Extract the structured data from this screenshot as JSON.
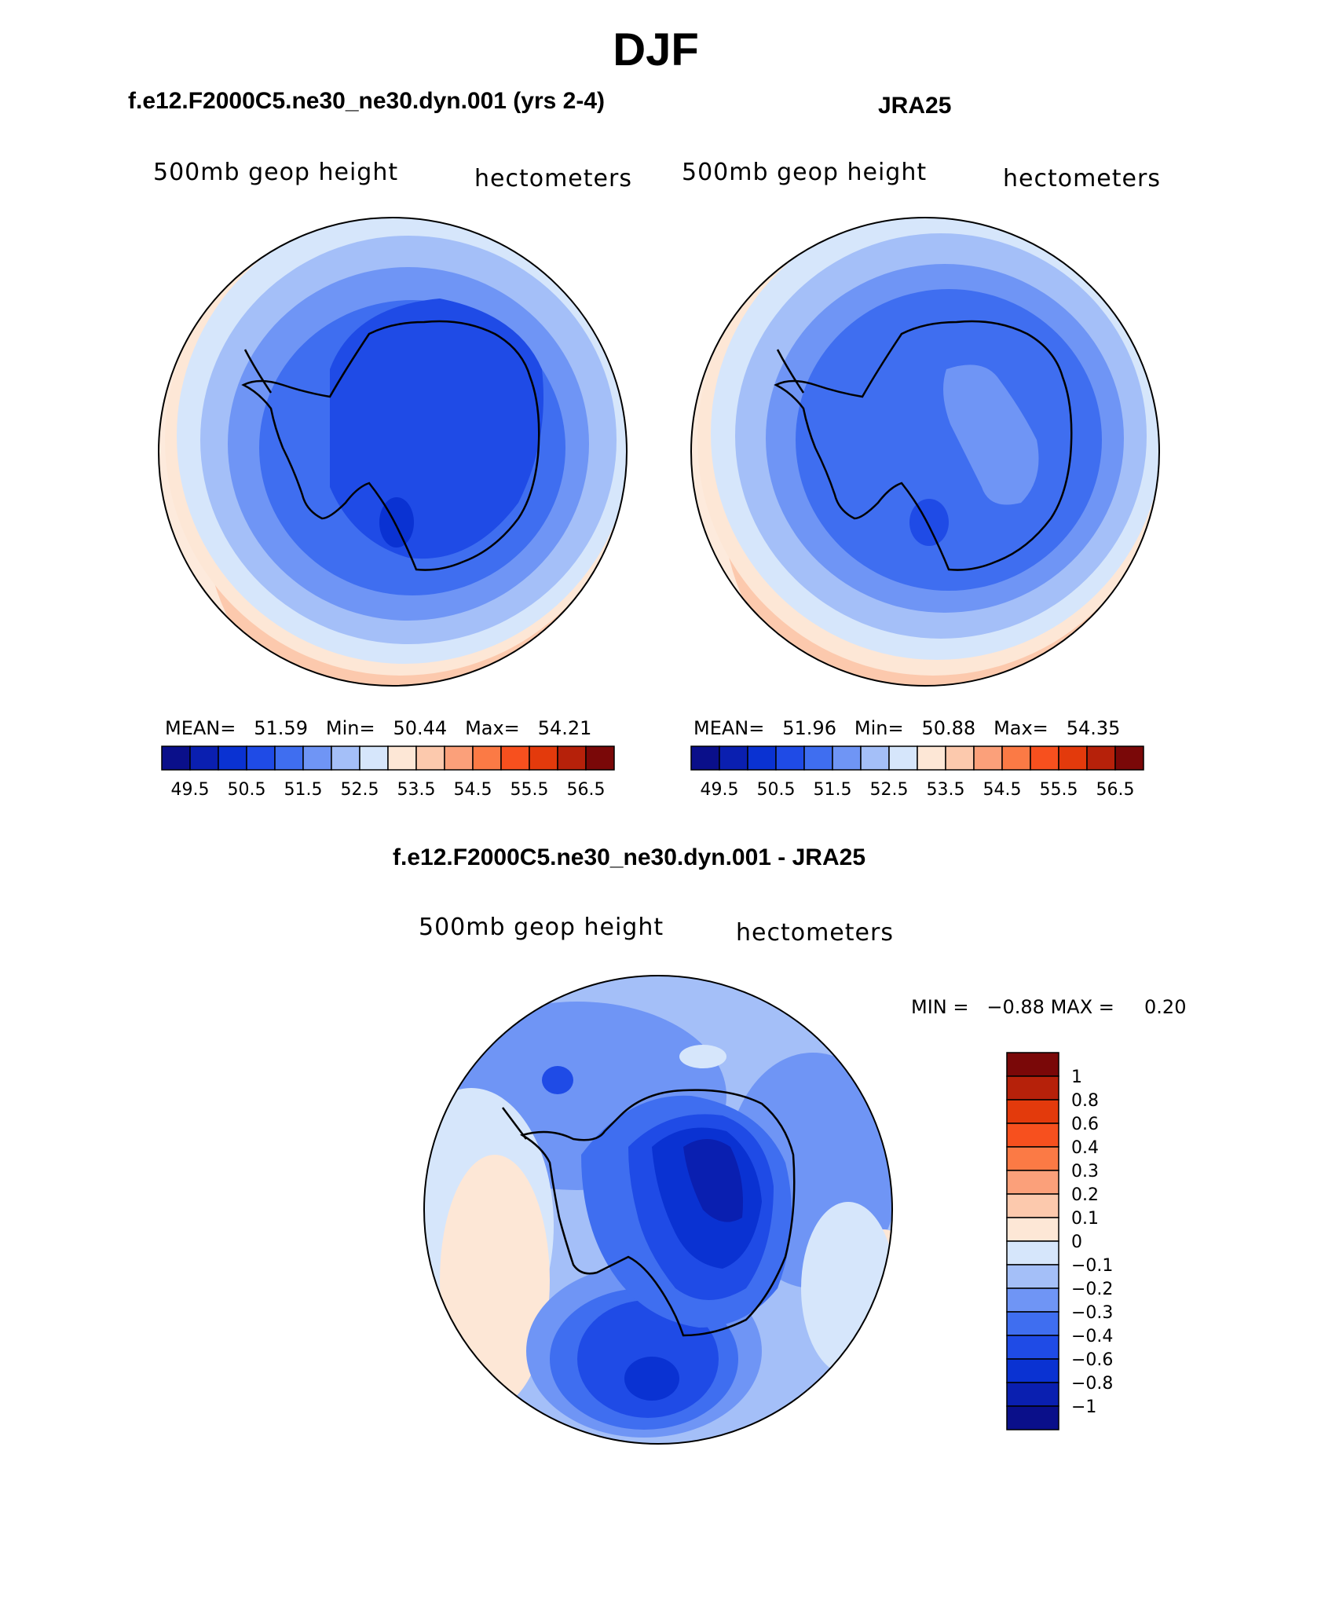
{
  "title": "DJF",
  "chart_data": [
    {
      "type": "heatmap",
      "projection": "south polar stereographic",
      "subtitle": "f.e12.F2000C5.ne30_ne30.dyn.001 (yrs 2-4)",
      "variable": "500mb geop height",
      "units": "hectometers",
      "stats": {
        "mean_label": "MEAN=",
        "mean": "51.59",
        "min_label": "Min=",
        "min": "50.44",
        "max_label": "Max=",
        "max": "54.21"
      },
      "colorbar": {
        "colors": [
          "#0a0f8a",
          "#0a1fb0",
          "#0a32d2",
          "#1f4be6",
          "#3f6ef0",
          "#6f95f5",
          "#a4bff8",
          "#d6e6fb",
          "#fde7d6",
          "#fcc9ad",
          "#fba07a",
          "#fb7a45",
          "#f7501e",
          "#e33a0c",
          "#b6210a",
          "#7a0808"
        ],
        "tick_labels": [
          "49.5",
          "50.5",
          "51.5",
          "52.5",
          "53.5",
          "54.5",
          "55.5",
          "56.5"
        ]
      }
    },
    {
      "type": "heatmap",
      "projection": "south polar stereographic",
      "subtitle": "JRA25",
      "variable": "500mb geop height",
      "units": "hectometers",
      "stats": {
        "mean_label": "MEAN=",
        "mean": "51.96",
        "min_label": "Min=",
        "min": "50.88",
        "max_label": "Max=",
        "max": "54.35"
      },
      "colorbar": {
        "colors": [
          "#0a0f8a",
          "#0a1fb0",
          "#0a32d2",
          "#1f4be6",
          "#3f6ef0",
          "#6f95f5",
          "#a4bff8",
          "#d6e6fb",
          "#fde7d6",
          "#fcc9ad",
          "#fba07a",
          "#fb7a45",
          "#f7501e",
          "#e33a0c",
          "#b6210a",
          "#7a0808"
        ],
        "tick_labels": [
          "49.5",
          "50.5",
          "51.5",
          "52.5",
          "53.5",
          "54.5",
          "55.5",
          "56.5"
        ]
      }
    },
    {
      "type": "heatmap",
      "projection": "south polar stereographic",
      "subtitle": "f.e12.F2000C5.ne30_ne30.dyn.001 - JRA25",
      "variable": "500mb geop height",
      "units": "hectometers",
      "stats": {
        "min_label": "MIN =",
        "min": "−0.88",
        "max_label": "MAX =",
        "max": "0.20"
      },
      "colorbar": {
        "colors": [
          "#7a0808",
          "#b6210a",
          "#e33a0c",
          "#f7501e",
          "#fb7a45",
          "#fba07a",
          "#fcc9ad",
          "#fde7d6",
          "#d6e6fb",
          "#a4bff8",
          "#6f95f5",
          "#3f6ef0",
          "#1f4be6",
          "#0a32d2",
          "#0a1fb0",
          "#0a0f8a"
        ],
        "tick_labels": [
          "1",
          "0.8",
          "0.6",
          "0.4",
          "0.3",
          "0.2",
          "0.1",
          "0",
          "−0.1",
          "−0.2",
          "−0.3",
          "−0.4",
          "−0.6",
          "−0.8",
          "−1"
        ]
      }
    }
  ]
}
